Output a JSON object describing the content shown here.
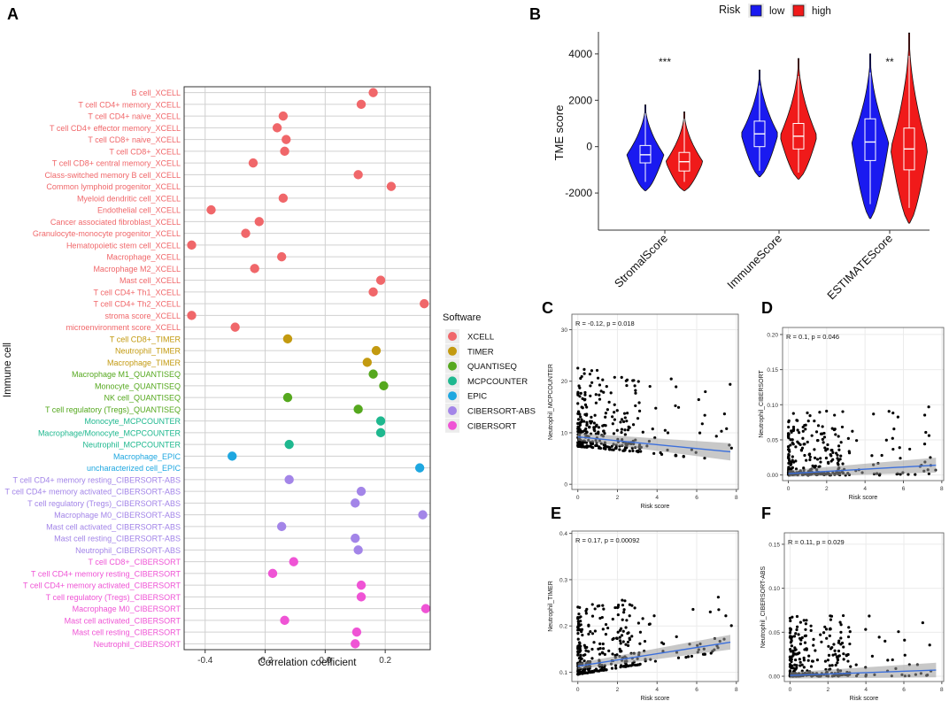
{
  "colors": {
    "XCELL": "#f0676a",
    "TIMER": "#c39a10",
    "QUANTISEQ": "#55a81e",
    "MCPCOUNTER": "#1fb88f",
    "EPIC": "#1ea7e0",
    "CIBERSORT-ABS": "#a385e8",
    "CIBERSORT": "#ef54d5",
    "low_fill": "#1a1af0",
    "high_fill": "#f01a1a",
    "trend": "#3b6fdc"
  },
  "panel_labels": {
    "A": "A",
    "B": "B",
    "C": "C",
    "D": "D",
    "E": "E",
    "F": "F"
  },
  "chart_data": [
    {
      "id": "A",
      "type": "scatter",
      "xlabel": "Correlation coefficient",
      "ylabel": "Immune cell",
      "xlim": [
        -0.47,
        0.35
      ],
      "xticks": [
        -0.4,
        -0.2,
        0.0,
        0.2
      ],
      "xtick_labels": [
        "-0.4",
        "-0.2",
        "0.0",
        "0.2"
      ],
      "legend_title": "Software",
      "legend_items": [
        "XCELL",
        "TIMER",
        "QUANTISEQ",
        "MCPCOUNTER",
        "EPIC",
        "CIBERSORT-ABS",
        "CIBERSORT"
      ],
      "points": [
        {
          "cell": "B cell_XCELL",
          "software": "XCELL",
          "value": 0.16
        },
        {
          "cell": "T cell CD4+ memory_XCELL",
          "software": "XCELL",
          "value": 0.12
        },
        {
          "cell": "T cell CD4+ naive_XCELL",
          "software": "XCELL",
          "value": -0.14
        },
        {
          "cell": "T cell CD4+ effector memory_XCELL",
          "software": "XCELL",
          "value": -0.16
        },
        {
          "cell": "T cell CD8+ naive_XCELL",
          "software": "XCELL",
          "value": -0.13
        },
        {
          "cell": "T cell CD8+_XCELL",
          "software": "XCELL",
          "value": -0.135
        },
        {
          "cell": "T cell CD8+ central memory_XCELL",
          "software": "XCELL",
          "value": -0.24
        },
        {
          "cell": "Class-switched memory B cell_XCELL",
          "software": "XCELL",
          "value": 0.11
        },
        {
          "cell": "Common lymphoid progenitor_XCELL",
          "software": "XCELL",
          "value": 0.22
        },
        {
          "cell": "Myeloid dendritic cell_XCELL",
          "software": "XCELL",
          "value": -0.14
        },
        {
          "cell": "Endothelial cell_XCELL",
          "software": "XCELL",
          "value": -0.38
        },
        {
          "cell": "Cancer associated fibroblast_XCELL",
          "software": "XCELL",
          "value": -0.22
        },
        {
          "cell": "Granulocyte-monocyte progenitor_XCELL",
          "software": "XCELL",
          "value": -0.265
        },
        {
          "cell": "Hematopoietic stem cell_XCELL",
          "software": "XCELL",
          "value": -0.445
        },
        {
          "cell": "Macrophage_XCELL",
          "software": "XCELL",
          "value": -0.145
        },
        {
          "cell": "Macrophage M2_XCELL",
          "software": "XCELL",
          "value": -0.235
        },
        {
          "cell": "Mast cell_XCELL",
          "software": "XCELL",
          "value": 0.185
        },
        {
          "cell": "T cell CD4+ Th1_XCELL",
          "software": "XCELL",
          "value": 0.16
        },
        {
          "cell": "T cell CD4+ Th2_XCELL",
          "software": "XCELL",
          "value": 0.33
        },
        {
          "cell": "stroma score_XCELL",
          "software": "XCELL",
          "value": -0.445
        },
        {
          "cell": "microenvironment score_XCELL",
          "software": "XCELL",
          "value": -0.3
        },
        {
          "cell": "T cell CD8+_TIMER",
          "software": "TIMER",
          "value": -0.125
        },
        {
          "cell": "Neutrophil_TIMER",
          "software": "TIMER",
          "value": 0.17
        },
        {
          "cell": "Macrophage_TIMER",
          "software": "TIMER",
          "value": 0.14
        },
        {
          "cell": "Macrophage M1_QUANTISEQ",
          "software": "QUANTISEQ",
          "value": 0.16
        },
        {
          "cell": "Monocyte_QUANTISEQ",
          "software": "QUANTISEQ",
          "value": 0.195
        },
        {
          "cell": "NK cell_QUANTISEQ",
          "software": "QUANTISEQ",
          "value": -0.125
        },
        {
          "cell": "T cell regulatory (Tregs)_QUANTISEQ",
          "software": "QUANTISEQ",
          "value": 0.11
        },
        {
          "cell": "Monocyte_MCPCOUNTER",
          "software": "MCPCOUNTER",
          "value": 0.185
        },
        {
          "cell": "Macrophage/Monocyte_MCPCOUNTER",
          "software": "MCPCOUNTER",
          "value": 0.185
        },
        {
          "cell": "Neutrophil_MCPCOUNTER",
          "software": "MCPCOUNTER",
          "value": -0.12
        },
        {
          "cell": "Macrophage_EPIC",
          "software": "EPIC",
          "value": -0.31
        },
        {
          "cell": "uncharacterized cell_EPIC",
          "software": "EPIC",
          "value": 0.315
        },
        {
          "cell": "T cell CD4+ memory resting_CIBERSORT-ABS",
          "software": "CIBERSORT-ABS",
          "value": -0.12
        },
        {
          "cell": "T cell CD4+ memory activated_CIBERSORT-ABS",
          "software": "CIBERSORT-ABS",
          "value": 0.12
        },
        {
          "cell": "T cell regulatory (Tregs)_CIBERSORT-ABS",
          "software": "CIBERSORT-ABS",
          "value": 0.1
        },
        {
          "cell": "Macrophage M0_CIBERSORT-ABS",
          "software": "CIBERSORT-ABS",
          "value": 0.325
        },
        {
          "cell": "Mast cell activated_CIBERSORT-ABS",
          "software": "CIBERSORT-ABS",
          "value": -0.145
        },
        {
          "cell": "Mast cell resting_CIBERSORT-ABS",
          "software": "CIBERSORT-ABS",
          "value": 0.1
        },
        {
          "cell": "Neutrophil_CIBERSORT-ABS",
          "software": "CIBERSORT-ABS",
          "value": 0.11
        },
        {
          "cell": "T cell CD8+_CIBERSORT",
          "software": "CIBERSORT",
          "value": -0.105
        },
        {
          "cell": "T cell CD4+ memory resting_CIBERSORT",
          "software": "CIBERSORT",
          "value": -0.175
        },
        {
          "cell": "T cell CD4+ memory activated_CIBERSORT",
          "software": "CIBERSORT",
          "value": 0.12
        },
        {
          "cell": "T cell regulatory (Tregs)_CIBERSORT",
          "software": "CIBERSORT",
          "value": 0.12
        },
        {
          "cell": "Macrophage M0_CIBERSORT",
          "software": "CIBERSORT",
          "value": 0.335
        },
        {
          "cell": "Mast cell activated_CIBERSORT",
          "software": "CIBERSORT",
          "value": -0.135
        },
        {
          "cell": "Mast cell resting_CIBERSORT",
          "software": "CIBERSORT",
          "value": 0.105
        },
        {
          "cell": "Neutrophil_CIBERSORT",
          "software": "CIBERSORT",
          "value": 0.1
        }
      ]
    },
    {
      "id": "B",
      "type": "violin",
      "ylabel": "TME score",
      "ylim": [
        -3600,
        4950
      ],
      "yticks": [
        -2000,
        0,
        2000,
        4000
      ],
      "ytick_labels": [
        "-2000",
        "0",
        "2000",
        "4000"
      ],
      "legend_title": "Risk",
      "legend_items": [
        "low",
        "high"
      ],
      "categories": [
        "StromalScore",
        "ImmuneScore",
        "ESTIMATEScore"
      ],
      "significance": [
        "***",
        "",
        "**"
      ],
      "groups": [
        {
          "category": "StromalScore",
          "risk": "low",
          "min": -1900,
          "q1": -700,
          "median": -350,
          "q3": 50,
          "max": 1800
        },
        {
          "category": "StromalScore",
          "risk": "high",
          "min": -1900,
          "q1": -1050,
          "median": -650,
          "q3": -250,
          "max": 1500
        },
        {
          "category": "ImmuneScore",
          "risk": "low",
          "min": -1300,
          "q1": 0,
          "median": 550,
          "q3": 1100,
          "max": 3300
        },
        {
          "category": "ImmuneScore",
          "risk": "high",
          "min": -1400,
          "q1": -100,
          "median": 450,
          "q3": 1000,
          "max": 3800
        },
        {
          "category": "ESTIMATEScore",
          "risk": "low",
          "min": -3100,
          "q1": -600,
          "median": 200,
          "q3": 1200,
          "max": 4000
        },
        {
          "category": "ESTIMATEScore",
          "risk": "high",
          "min": -3300,
          "q1": -1000,
          "median": -100,
          "q3": 800,
          "max": 4900
        }
      ]
    },
    {
      "id": "C",
      "type": "scatter",
      "ylabel": "Neutrophil_MCPCOUNTER",
      "xlabel": "Risk score",
      "annotation": "R = -0.12, p = 0.018",
      "xlim": [
        -0.3,
        8.1
      ],
      "ylim": [
        -1,
        33
      ],
      "xticks": [
        0,
        2,
        4,
        6,
        8
      ],
      "xtick_labels": [
        "0",
        "2",
        "4",
        "6",
        "8"
      ],
      "yticks": [
        0,
        10,
        20,
        30
      ],
      "ytick_labels": [
        "0",
        "10",
        "20",
        "30"
      ],
      "trend": {
        "x0": 0,
        "y0": 9.2,
        "x1": 7.7,
        "y1": 6.3
      },
      "point_count": 320,
      "seed": 11
    },
    {
      "id": "D",
      "type": "scatter",
      "ylabel": "Neutrophil_CIBERSORT",
      "xlabel": "Risk score",
      "annotation": "R = 0.1, p = 0.046",
      "xlim": [
        -0.3,
        8.1
      ],
      "ylim": [
        -0.008,
        0.21
      ],
      "xticks": [
        0,
        2,
        4,
        6,
        8
      ],
      "xtick_labels": [
        "0",
        "2",
        "4",
        "6",
        "8"
      ],
      "yticks": [
        0.0,
        0.05,
        0.1,
        0.15,
        0.2
      ],
      "ytick_labels": [
        "0.00",
        "0.05",
        "0.10",
        "0.15",
        "0.20"
      ],
      "trend": {
        "x0": 0,
        "y0": 0.002,
        "x1": 7.7,
        "y1": 0.014
      },
      "point_count": 320,
      "seed": 23
    },
    {
      "id": "E",
      "type": "scatter",
      "ylabel": "Neutrophil_TIMER",
      "xlabel": "Risk score",
      "annotation": "R = 0.17, p = 0.00092",
      "xlim": [
        -0.3,
        8.1
      ],
      "ylim": [
        0.08,
        0.405
      ],
      "xticks": [
        0,
        2,
        4,
        6,
        8
      ],
      "xtick_labels": [
        "0",
        "2",
        "4",
        "6",
        "8"
      ],
      "yticks": [
        0.1,
        0.2,
        0.3,
        0.4
      ],
      "ytick_labels": [
        "0.1",
        "0.2",
        "0.3",
        "0.4"
      ],
      "trend": {
        "x0": 0,
        "y0": 0.113,
        "x1": 7.7,
        "y1": 0.165
      },
      "point_count": 320,
      "seed": 37
    },
    {
      "id": "F",
      "type": "scatter",
      "ylabel": "Neutrophil_CIBERSORT-ABS",
      "xlabel": "Risk score",
      "annotation": "R = 0.11, p = 0.029",
      "xlim": [
        -0.3,
        8.1
      ],
      "ylim": [
        -0.006,
        0.163
      ],
      "xticks": [
        0,
        2,
        4,
        6,
        8
      ],
      "xtick_labels": [
        "0",
        "2",
        "4",
        "6",
        "8"
      ],
      "yticks": [
        0.0,
        0.05,
        0.1,
        0.15
      ],
      "ytick_labels": [
        "0.00",
        "0.05",
        "0.10",
        "0.15"
      ],
      "trend": {
        "x0": 0,
        "y0": 0.001,
        "x1": 7.7,
        "y1": 0.007
      },
      "point_count": 320,
      "seed": 51
    }
  ]
}
